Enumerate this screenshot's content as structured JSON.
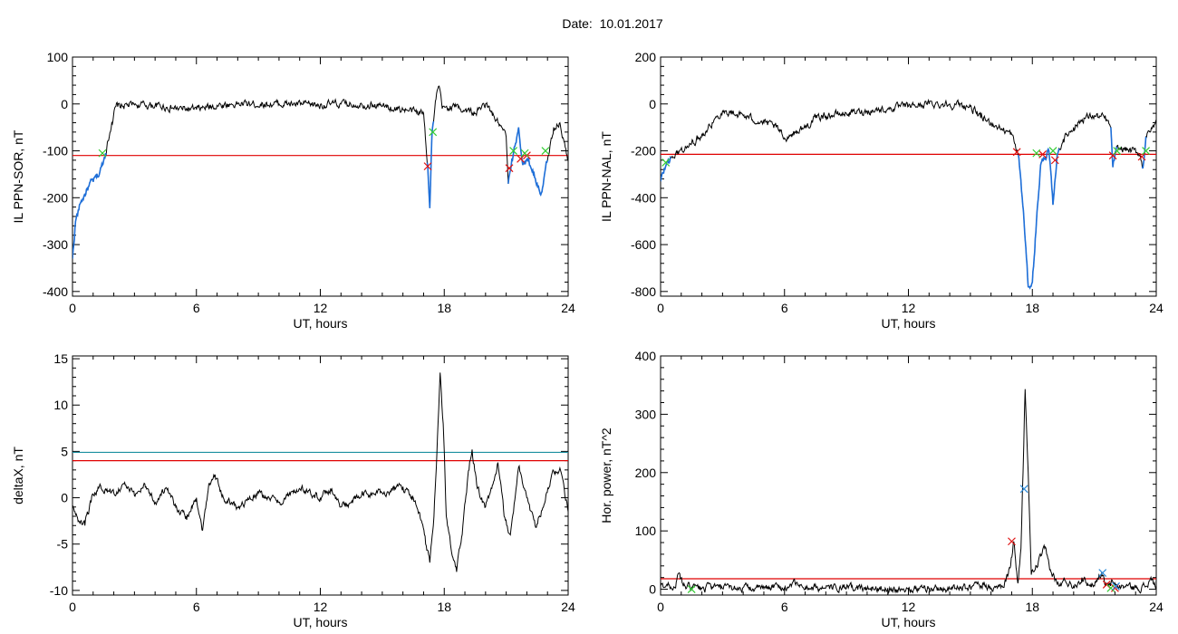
{
  "date_title": "Date:  10.01.2017",
  "colors": {
    "trace": "#000000",
    "threshold": "#e00000",
    "threshold2": "#1a8fa0",
    "highlight": "#1e6fd9",
    "marker_red": "#e01010",
    "marker_green": "#33cc33",
    "marker_blue": "#2a8ad9"
  },
  "chart_data": [
    {
      "id": "sor",
      "type": "line",
      "ylabel": "IL PPN-SOR, nT",
      "xlabel": "UT, hours",
      "xlim": [
        0,
        24
      ],
      "ylim": [
        -410,
        100
      ],
      "xticks": [
        0,
        6,
        12,
        18,
        24
      ],
      "yticks": [
        100,
        0,
        -100,
        -200,
        -300,
        -400
      ],
      "threshold": -110,
      "keypoints": [
        [
          0,
          -330
        ],
        [
          0.15,
          -250
        ],
        [
          0.4,
          -210
        ],
        [
          0.8,
          -175
        ],
        [
          1.3,
          -150
        ],
        [
          1.6,
          -105
        ],
        [
          1.9,
          -40
        ],
        [
          2.1,
          -5
        ],
        [
          3,
          -2
        ],
        [
          4,
          -3
        ],
        [
          5,
          -10
        ],
        [
          6,
          -12
        ],
        [
          7,
          -3
        ],
        [
          8,
          0
        ],
        [
          10,
          0
        ],
        [
          12,
          -2
        ],
        [
          13,
          0
        ],
        [
          14,
          0
        ],
        [
          15,
          -5
        ],
        [
          16,
          -12
        ],
        [
          17,
          -20
        ],
        [
          17.2,
          -130
        ],
        [
          17.3,
          -222
        ],
        [
          17.4,
          -70
        ],
        [
          17.6,
          10
        ],
        [
          17.75,
          38
        ],
        [
          17.9,
          -10
        ],
        [
          18.5,
          -5
        ],
        [
          19.5,
          -20
        ],
        [
          20,
          0
        ],
        [
          20.6,
          -40
        ],
        [
          21.0,
          -70
        ],
        [
          21.1,
          -170
        ],
        [
          21.3,
          -120
        ],
        [
          21.6,
          -50
        ],
        [
          21.8,
          -130
        ],
        [
          22.1,
          -120
        ],
        [
          22.5,
          -170
        ],
        [
          22.7,
          -190
        ],
        [
          23,
          -120
        ],
        [
          23.3,
          -50
        ],
        [
          23.6,
          -40
        ],
        [
          23.8,
          -80
        ],
        [
          24,
          -120
        ]
      ],
      "highlight_ranges": [
        [
          0,
          1.65
        ],
        [
          17.15,
          17.5
        ],
        [
          21.1,
          23.0
        ]
      ],
      "markers_red": [
        [
          17.2,
          -133
        ],
        [
          21.15,
          -137
        ],
        [
          21.7,
          -117
        ],
        [
          22.0,
          -110
        ]
      ],
      "markers_green": [
        [
          1.45,
          -105
        ],
        [
          17.45,
          -60
        ],
        [
          21.35,
          -100
        ],
        [
          21.9,
          -105
        ],
        [
          22.9,
          -100
        ]
      ]
    },
    {
      "id": "nal",
      "type": "line",
      "ylabel": "IL PPN-NAL, nT",
      "xlabel": "UT, hours",
      "xlim": [
        0,
        24
      ],
      "ylim": [
        -820,
        200
      ],
      "xticks": [
        0,
        6,
        12,
        18,
        24
      ],
      "yticks": [
        200,
        0,
        -200,
        -400,
        -600,
        -800
      ],
      "threshold": -215,
      "keypoints": [
        [
          0,
          -330
        ],
        [
          0.3,
          -250
        ],
        [
          0.8,
          -210
        ],
        [
          1.5,
          -170
        ],
        [
          2,
          -130
        ],
        [
          2.5,
          -80
        ],
        [
          3,
          -30
        ],
        [
          4,
          -50
        ],
        [
          5,
          -80
        ],
        [
          5.6,
          -100
        ],
        [
          6,
          -145
        ],
        [
          6.5,
          -120
        ],
        [
          7,
          -100
        ],
        [
          7.5,
          -60
        ],
        [
          8,
          -50
        ],
        [
          9,
          -40
        ],
        [
          10,
          -30
        ],
        [
          11,
          -20
        ],
        [
          12,
          -10
        ],
        [
          13,
          0
        ],
        [
          14,
          0
        ],
        [
          15,
          -10
        ],
        [
          15.5,
          -60
        ],
        [
          16,
          -80
        ],
        [
          17,
          -130
        ],
        [
          17.2,
          -190
        ],
        [
          17.35,
          -230
        ],
        [
          17.6,
          -500
        ],
        [
          17.8,
          -780
        ],
        [
          18.0,
          -760
        ],
        [
          18.2,
          -500
        ],
        [
          18.4,
          -260
        ],
        [
          18.6,
          -230
        ],
        [
          18.8,
          -200
        ],
        [
          19.0,
          -430
        ],
        [
          19.2,
          -220
        ],
        [
          19.5,
          -150
        ],
        [
          20,
          -100
        ],
        [
          20.5,
          -60
        ],
        [
          21,
          -50
        ],
        [
          21.5,
          -60
        ],
        [
          21.8,
          -100
        ],
        [
          21.9,
          -270
        ],
        [
          22.05,
          -200
        ],
        [
          22.4,
          -190
        ],
        [
          22.8,
          -200
        ],
        [
          23.2,
          -210
        ],
        [
          23.35,
          -275
        ],
        [
          23.5,
          -140
        ],
        [
          23.7,
          -120
        ],
        [
          24,
          -80
        ]
      ],
      "highlight_ranges": [
        [
          0,
          0.5
        ],
        [
          17.3,
          19.3
        ],
        [
          21.8,
          22.1
        ],
        [
          23.3,
          23.5
        ]
      ],
      "markers_red": [
        [
          17.25,
          -205
        ],
        [
          18.5,
          -215
        ],
        [
          19.1,
          -240
        ],
        [
          21.9,
          -220
        ],
        [
          23.3,
          -225
        ]
      ],
      "markers_green": [
        [
          0.25,
          -250
        ],
        [
          18.2,
          -210
        ],
        [
          19.0,
          -200
        ],
        [
          22.1,
          -200
        ],
        [
          23.5,
          -200
        ]
      ]
    },
    {
      "id": "deltax",
      "type": "line",
      "ylabel": "deltaX, nT",
      "xlabel": "UT, hours",
      "xlim": [
        0,
        24
      ],
      "ylim": [
        -10.5,
        15.3
      ],
      "xticks": [
        0,
        6,
        12,
        18,
        24
      ],
      "yticks": [
        15,
        10,
        5,
        0,
        -5,
        -10
      ],
      "threshold": 4.0,
      "threshold2": 4.9,
      "keypoints": [
        [
          0,
          -1
        ],
        [
          0.3,
          -2.5
        ],
        [
          0.6,
          -3
        ],
        [
          0.9,
          -0.5
        ],
        [
          1.3,
          1.2
        ],
        [
          2,
          0.5
        ],
        [
          2.5,
          1.5
        ],
        [
          3,
          0.2
        ],
        [
          3.5,
          1.5
        ],
        [
          4,
          -0.5
        ],
        [
          4.5,
          1
        ],
        [
          5,
          -1
        ],
        [
          5.5,
          -2
        ],
        [
          6,
          0
        ],
        [
          6.3,
          -3.5
        ],
        [
          6.6,
          1.5
        ],
        [
          6.9,
          2.5
        ],
        [
          7.3,
          0
        ],
        [
          8,
          -1
        ],
        [
          9,
          0.5
        ],
        [
          10,
          -0.5
        ],
        [
          11,
          1
        ],
        [
          12,
          0
        ],
        [
          12.5,
          1
        ],
        [
          13,
          -1
        ],
        [
          13.5,
          -0.5
        ],
        [
          14,
          0.3
        ],
        [
          15,
          0.5
        ],
        [
          16,
          1.2
        ],
        [
          16.5,
          0
        ],
        [
          16.9,
          -2.5
        ],
        [
          17.1,
          -5
        ],
        [
          17.3,
          -7
        ],
        [
          17.5,
          -2
        ],
        [
          17.7,
          8
        ],
        [
          17.8,
          13.5
        ],
        [
          17.95,
          8
        ],
        [
          18.1,
          -2
        ],
        [
          18.3,
          -5
        ],
        [
          18.6,
          -8
        ],
        [
          18.9,
          -3
        ],
        [
          19.2,
          3
        ],
        [
          19.35,
          5.2
        ],
        [
          19.6,
          1
        ],
        [
          20,
          -1
        ],
        [
          20.3,
          1
        ],
        [
          20.6,
          3.8
        ],
        [
          20.9,
          -2
        ],
        [
          21.2,
          -4
        ],
        [
          21.6,
          3.3
        ],
        [
          22,
          0
        ],
        [
          22.4,
          -3
        ],
        [
          22.8,
          -1
        ],
        [
          23.2,
          2.5
        ],
        [
          23.6,
          3.2
        ],
        [
          24,
          -1.5
        ]
      ],
      "highlight_ranges": [],
      "markers_red": [],
      "markers_green": []
    },
    {
      "id": "power",
      "type": "line",
      "ylabel": "Hor. power, nT^2",
      "xlabel": "UT, hours",
      "xlim": [
        0,
        24
      ],
      "ylim": [
        -10,
        400
      ],
      "xticks": [
        0,
        6,
        12,
        18,
        24
      ],
      "yticks": [
        400,
        300,
        200,
        100,
        0
      ],
      "threshold": 18,
      "keypoints": [
        [
          0,
          5
        ],
        [
          0.4,
          8
        ],
        [
          0.7,
          3
        ],
        [
          0.9,
          28
        ],
        [
          1.1,
          5
        ],
        [
          1.5,
          3
        ],
        [
          2,
          1
        ],
        [
          2.5,
          4
        ],
        [
          3,
          1
        ],
        [
          4,
          3
        ],
        [
          5,
          1
        ],
        [
          5.5,
          6
        ],
        [
          6,
          2
        ],
        [
          6.6,
          12
        ],
        [
          6.9,
          3
        ],
        [
          8,
          2
        ],
        [
          9,
          2
        ],
        [
          10,
          1
        ],
        [
          11,
          2
        ],
        [
          12,
          1
        ],
        [
          13,
          2
        ],
        [
          14,
          1
        ],
        [
          15,
          3
        ],
        [
          15.6,
          10
        ],
        [
          16,
          2
        ],
        [
          16.6,
          3
        ],
        [
          16.95,
          40
        ],
        [
          17.1,
          82
        ],
        [
          17.3,
          10
        ],
        [
          17.45,
          70
        ],
        [
          17.55,
          200
        ],
        [
          17.65,
          343
        ],
        [
          17.8,
          200
        ],
        [
          17.95,
          25
        ],
        [
          18.2,
          40
        ],
        [
          18.6,
          70
        ],
        [
          18.9,
          30
        ],
        [
          19.3,
          5
        ],
        [
          19.6,
          15
        ],
        [
          20,
          5
        ],
        [
          20.4,
          20
        ],
        [
          20.8,
          5
        ],
        [
          21.1,
          15
        ],
        [
          21.35,
          28
        ],
        [
          21.5,
          10
        ],
        [
          21.7,
          5
        ],
        [
          21.9,
          12
        ],
        [
          22.2,
          3
        ],
        [
          22.6,
          6
        ],
        [
          23,
          2
        ],
        [
          23.5,
          5
        ],
        [
          23.8,
          18
        ],
        [
          24,
          3
        ]
      ],
      "highlight_ranges": [],
      "markers_red": [
        [
          17.0,
          82
        ],
        [
          21.6,
          8
        ],
        [
          22.0,
          2
        ]
      ],
      "markers_green": [
        [
          1.5,
          0
        ],
        [
          21.8,
          2
        ]
      ],
      "markers_blue": [
        [
          17.6,
          172
        ],
        [
          21.4,
          28
        ],
        [
          22.05,
          5
        ]
      ]
    }
  ]
}
